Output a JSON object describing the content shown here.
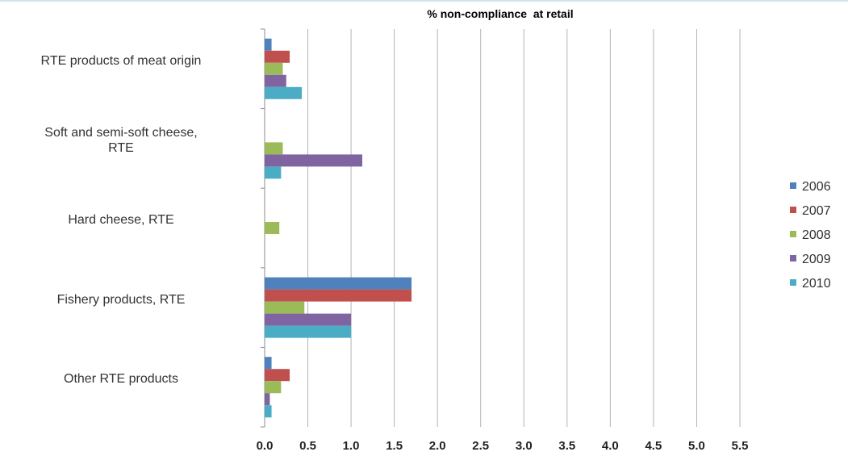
{
  "chart_data": {
    "type": "bar",
    "orientation": "horizontal",
    "title": "% non-compliance  at retail",
    "categories": [
      "RTE products of meat origin",
      "Soft and semi-soft cheese, RTE",
      "Hard cheese, RTE",
      "Fishery products, RTE",
      "Other RTE products"
    ],
    "category_lines": [
      [
        "RTE products of meat origin"
      ],
      [
        "Soft and semi-soft cheese,",
        "RTE"
      ],
      [
        "Hard cheese, RTE"
      ],
      [
        "Fishery products, RTE"
      ],
      [
        "Other RTE products"
      ]
    ],
    "series": [
      {
        "name": "2006",
        "color": "#4f81bd",
        "values": [
          0.08,
          null,
          null,
          1.7,
          0.08
        ]
      },
      {
        "name": "2007",
        "color": "#c0504d",
        "values": [
          0.29,
          null,
          null,
          1.7,
          0.29
        ]
      },
      {
        "name": "2008",
        "color": "#9bbb59",
        "values": [
          0.21,
          0.21,
          0.17,
          0.46,
          0.19
        ]
      },
      {
        "name": "2009",
        "color": "#8064a2",
        "values": [
          0.25,
          1.13,
          null,
          1.0,
          0.06
        ]
      },
      {
        "name": "2010",
        "color": "#4bacc6",
        "values": [
          0.43,
          0.19,
          null,
          1.0,
          0.08
        ]
      }
    ],
    "xlim": [
      0,
      5.5
    ],
    "xticks": [
      "0.0",
      "0.5",
      "1.0",
      "1.5",
      "2.0",
      "2.5",
      "3.0",
      "3.5",
      "4.0",
      "4.5",
      "5.0",
      "5.5"
    ],
    "grid": true,
    "legend_position": "right"
  }
}
